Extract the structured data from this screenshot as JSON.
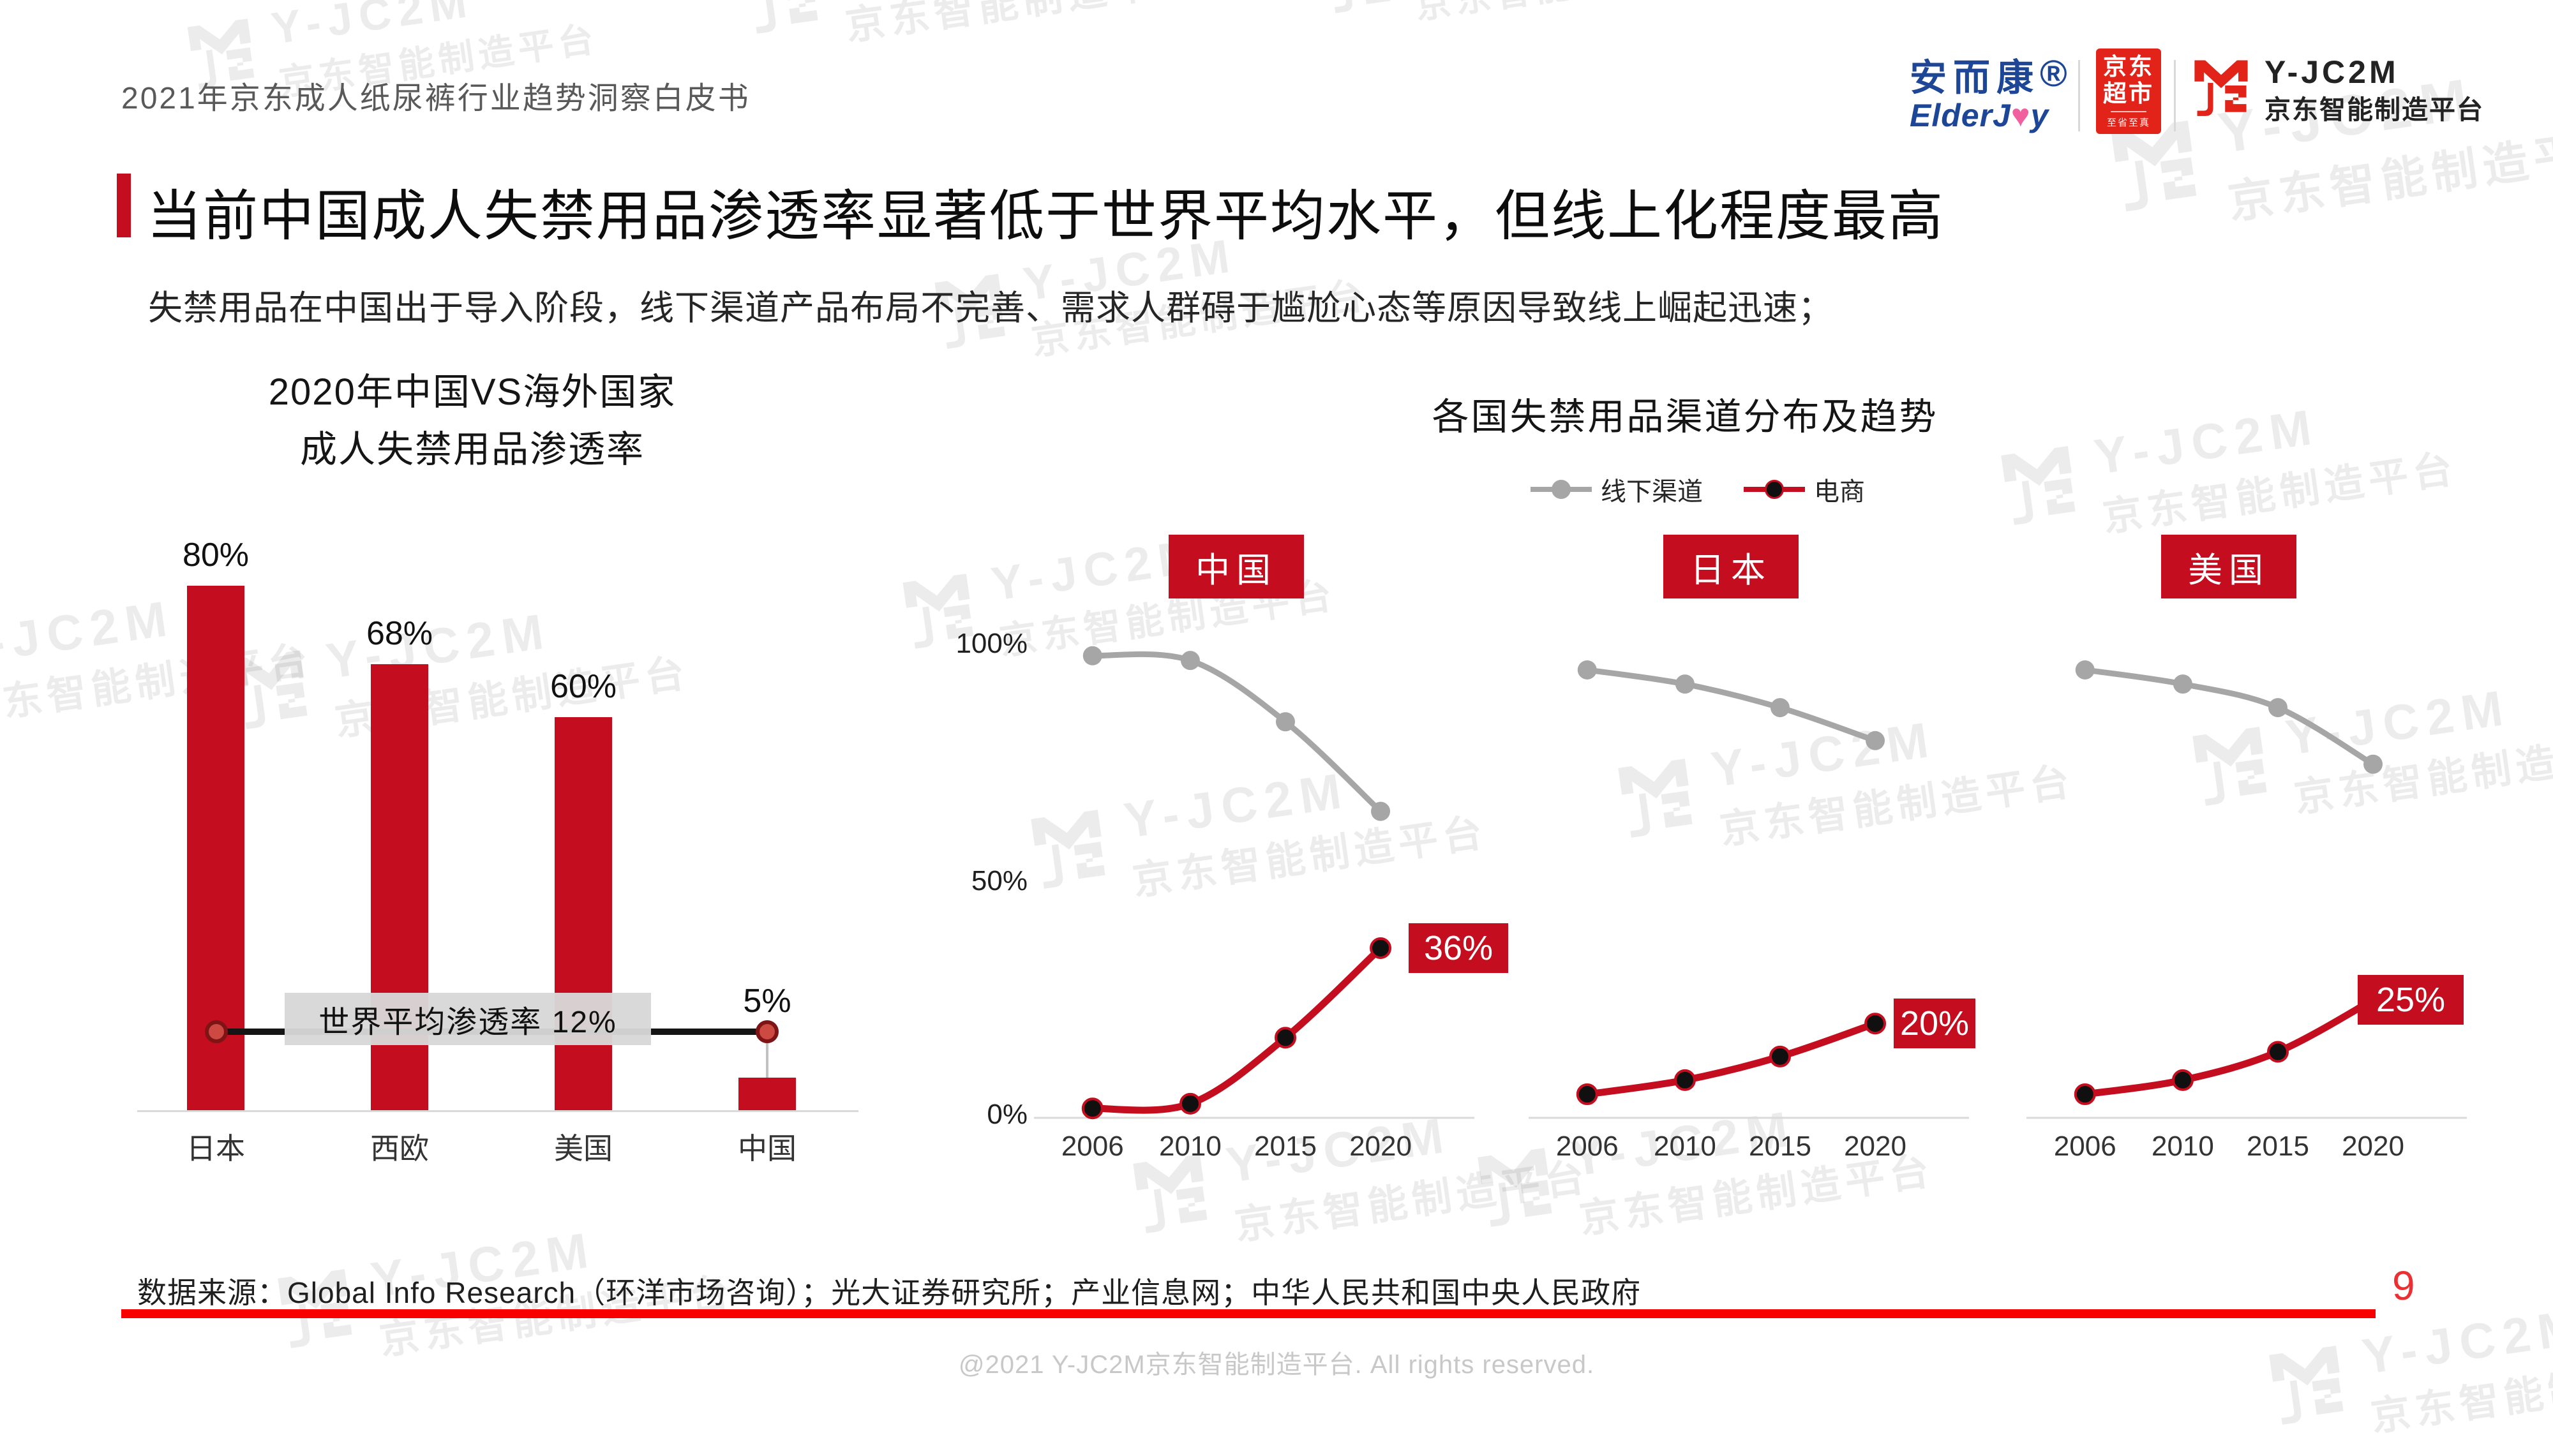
{
  "header": {
    "doc_title": "2021年京东成人纸尿裤行业趋势洞察白皮书",
    "brand": {
      "name_cn": "安而康",
      "reg": "®",
      "en_pre": "ElderJ",
      "en_o": "♥",
      "en_post": "y"
    },
    "jd_badge": {
      "line1": "京东",
      "line2": "超市",
      "slogan": "至省至真"
    },
    "platform": {
      "line1": "Y-JC2M",
      "line2": "京东智能制造平台"
    }
  },
  "page": {
    "title": "当前中国成人失禁用品渗透率显著低于世界平均水平，但线上化程度最高",
    "subtitle": "失禁用品在中国出于导入阶段，线下渠道产品布局不完善、需求人群碍于尴尬心态等原因导致线上崛起迅速；"
  },
  "chart_data": [
    {
      "type": "bar",
      "title_line1": "2020年中国VS海外国家",
      "title_line2": "成人失禁用品渗透率",
      "categories": [
        "日本",
        "西欧",
        "美国",
        "中国"
      ],
      "values": [
        80,
        68,
        60,
        5
      ],
      "value_labels": [
        "80%",
        "68%",
        "60%",
        "5%"
      ],
      "annotation": {
        "label": "世界平均渗透率 12%",
        "value": 12
      },
      "ylim": [
        0,
        100
      ],
      "bar_color": "#C40D1E",
      "grid": false
    },
    {
      "type": "line",
      "title": "各国失禁用品渠道分布及趋势",
      "legend": [
        {
          "label": "线下渠道",
          "color": "#A6A6A6"
        },
        {
          "label": "电商",
          "color": "#C40D1E"
        }
      ],
      "yticks": [
        "100%",
        "50%",
        "0%"
      ],
      "ylim": [
        0,
        100
      ],
      "x": [
        "2006",
        "2010",
        "2015",
        "2020"
      ],
      "panels": [
        {
          "country": "中国",
          "series": [
            {
              "name": "线下渠道",
              "values": [
                98,
                97,
                84,
                65
              ],
              "color": "#A6A6A6"
            },
            {
              "name": "电商",
              "values": [
                2,
                3,
                17,
                36
              ],
              "color": "#C40D1E"
            }
          ],
          "end_label": "36%"
        },
        {
          "country": "日本",
          "series": [
            {
              "name": "线下渠道",
              "values": [
                95,
                92,
                87,
                80
              ],
              "color": "#A6A6A6"
            },
            {
              "name": "电商",
              "values": [
                5,
                8,
                13,
                20
              ],
              "color": "#C40D1E"
            }
          ],
          "end_label": "20%"
        },
        {
          "country": "美国",
          "series": [
            {
              "name": "线下渠道",
              "values": [
                95,
                92,
                87,
                75
              ],
              "color": "#A6A6A6"
            },
            {
              "name": "电商",
              "values": [
                5,
                8,
                14,
                25
              ],
              "color": "#C40D1E"
            }
          ],
          "end_label": "25%"
        }
      ]
    }
  ],
  "footer": {
    "source": "数据来源：Global Info Research（环洋市场咨询）；光大证券研究所；产业信息网；中华人民共和国中央人民政府",
    "page_number": "9",
    "copyright": "@2021 Y-JC2M京东智能制造平台. All rights reserved."
  },
  "watermark": {
    "line1": "Y-JC2M",
    "line2": "京东智能制造平台"
  },
  "colors": {
    "main_red": "#C40D1E",
    "jd_red": "#E2231A",
    "gray_series": "#A6A6A6",
    "footer_line": "#F80000"
  }
}
